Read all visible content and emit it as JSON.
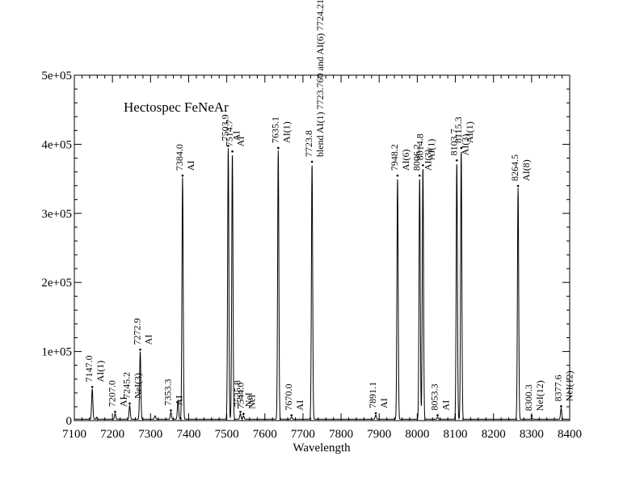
{
  "chart_data": {
    "type": "line",
    "title": "Hectospec FeNeAr",
    "xlabel": "Wavelength",
    "ylabel": "",
    "xlim": [
      7100,
      8400
    ],
    "ylim": [
      0,
      500000
    ],
    "grid": false,
    "xticks": [
      7100,
      7200,
      7300,
      7400,
      7500,
      7600,
      7700,
      7800,
      7900,
      8000,
      8100,
      8200,
      8300,
      8400
    ],
    "xtick_labels": [
      "7100",
      "7200",
      "7300",
      "7400",
      "7500",
      "7600",
      "7700",
      "7800",
      "7900",
      "8000",
      "8100",
      "8200",
      "8300",
      "8400"
    ],
    "yticks": [
      0,
      100000,
      200000,
      300000,
      400000,
      500000
    ],
    "ytick_labels": [
      "0",
      "1e+05",
      "2e+05",
      "3e+05",
      "4e+05",
      "5e+05"
    ],
    "series": [
      {
        "color": "#000000",
        "peaks": [
          {
            "x": 7147.0,
            "y": 44000
          },
          {
            "x": 7158.8,
            "y": 3000
          },
          {
            "x": 7206.98,
            "y": 8000
          },
          {
            "x": 7245.2,
            "y": 20000
          },
          {
            "x": 7272.9,
            "y": 98000
          },
          {
            "x": 7311.7,
            "y": 5000
          },
          {
            "x": 7353.3,
            "y": 10000
          },
          {
            "x": 7372.1,
            "y": 28000
          },
          {
            "x": 7384.0,
            "y": 350000
          },
          {
            "x": 7503.9,
            "y": 393000
          },
          {
            "x": 7514.7,
            "y": 385000
          },
          {
            "x": 7535.8,
            "y": 8000
          },
          {
            "x": 7544.0,
            "y": 5000
          },
          {
            "x": 7635.1,
            "y": 390000
          },
          {
            "x": 7670.0,
            "y": 3000
          },
          {
            "x": 7723.8,
            "y": 370000
          },
          {
            "x": 7891.1,
            "y": 6000
          },
          {
            "x": 7948.2,
            "y": 350000
          },
          {
            "x": 8006.2,
            "y": 350000
          },
          {
            "x": 8014.8,
            "y": 365000
          },
          {
            "x": 8053.3,
            "y": 3000
          },
          {
            "x": 8103.7,
            "y": 372000
          },
          {
            "x": 8115.3,
            "y": 390000
          },
          {
            "x": 8264.5,
            "y": 335000
          },
          {
            "x": 8300.3,
            "y": 2000
          },
          {
            "x": 8377.6,
            "y": 16000
          }
        ]
      }
    ],
    "annotations": [
      {
        "x": 7147.0,
        "y": 44000,
        "wavelength": "7147.0",
        "species": "AI(1)"
      },
      {
        "x": 7206.98,
        "y": 8000,
        "wavelength": "7207.0",
        "species": "AI"
      },
      {
        "x": 7245.2,
        "y": 20000,
        "wavelength": "7245.2",
        "species": "NeI(3)"
      },
      {
        "x": 7272.9,
        "y": 98000,
        "wavelength": "7272.9",
        "species": "AI"
      },
      {
        "x": 7353.3,
        "y": 10000,
        "wavelength": "7353.3",
        "species": "AI"
      },
      {
        "x": 7384.0,
        "y": 350000,
        "wavelength": "7384.0",
        "species": "AI"
      },
      {
        "x": 7503.9,
        "y": 393000,
        "wavelength": "7503.9",
        "species": "AI"
      },
      {
        "x": 7514.7,
        "y": 385000,
        "wavelength": "7514.7",
        "species": "AI"
      },
      {
        "x": 7535.8,
        "y": 8000,
        "wavelength": "7535.8",
        "species": "NeI"
      },
      {
        "x": 7544.0,
        "y": 5000,
        "wavelength": "7544.0",
        "species": "NeI"
      },
      {
        "x": 7635.1,
        "y": 390000,
        "wavelength": "7635.1",
        "species": "AI(1)"
      },
      {
        "x": 7670.0,
        "y": 3000,
        "wavelength": "7670.0",
        "species": "AI"
      },
      {
        "x": 7723.8,
        "y": 370000,
        "wavelength": "7723.8",
        "species": "blend AI(1) 7723.760 and AI(6) 7724.21"
      },
      {
        "x": 7891.1,
        "y": 6000,
        "wavelength": "7891.1",
        "species": "AI"
      },
      {
        "x": 7948.2,
        "y": 350000,
        "wavelength": "7948.2",
        "species": "AI(6)"
      },
      {
        "x": 8006.2,
        "y": 350000,
        "wavelength": "8006.2",
        "species": "AI(3)"
      },
      {
        "x": 8014.8,
        "y": 365000,
        "wavelength": "8014.8",
        "species": "AI(1)"
      },
      {
        "x": 8053.3,
        "y": 3000,
        "wavelength": "8053.3",
        "species": "AI"
      },
      {
        "x": 8103.7,
        "y": 372000,
        "wavelength": "8103.7",
        "species": "AI(3)"
      },
      {
        "x": 8115.3,
        "y": 390000,
        "wavelength": "8115.3",
        "species": "AI(1)"
      },
      {
        "x": 8264.5,
        "y": 335000,
        "wavelength": "8264.5",
        "species": "AI(8)"
      },
      {
        "x": 8300.3,
        "y": 2000,
        "wavelength": "8300.3",
        "species": "NeI(12)"
      },
      {
        "x": 8377.6,
        "y": 16000,
        "wavelength": "8377.6",
        "species": "NeI(12)"
      }
    ]
  }
}
